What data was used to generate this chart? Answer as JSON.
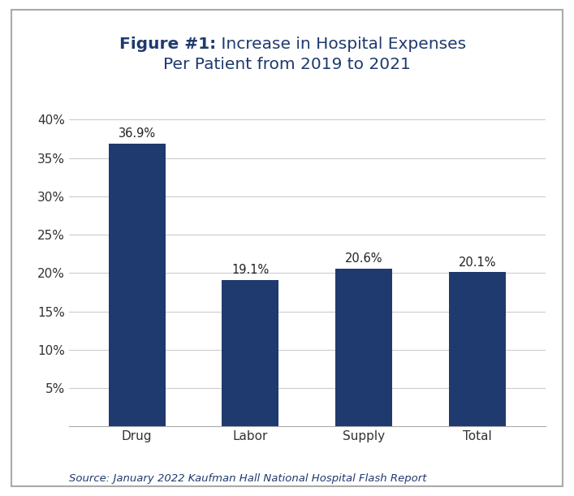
{
  "categories": [
    "Drug",
    "Labor",
    "Supply",
    "Total"
  ],
  "values": [
    36.9,
    19.1,
    20.6,
    20.1
  ],
  "bar_color": "#1F3A6E",
  "title_bold_part": "Figure #1:",
  "title_normal_part": " Increase in Hospital Expenses\nPer Patient from 2019 to 2021",
  "title_fontsize": 14.5,
  "tick_fontsize": 11,
  "annotation_fontsize": 10.5,
  "source_text": "Source: January 2022 Kaufman Hall National Hospital Flash Report",
  "source_fontsize": 9.5,
  "ylim": [
    0,
    42
  ],
  "yticks": [
    5,
    10,
    15,
    20,
    25,
    30,
    35,
    40
  ],
  "background_color": "#FFFFFF",
  "border_color": "#AAAAAA",
  "grid_color": "#CCCCCC",
  "title_color": "#1F3A6E",
  "tick_color": "#333333",
  "annotation_color": "#222222"
}
